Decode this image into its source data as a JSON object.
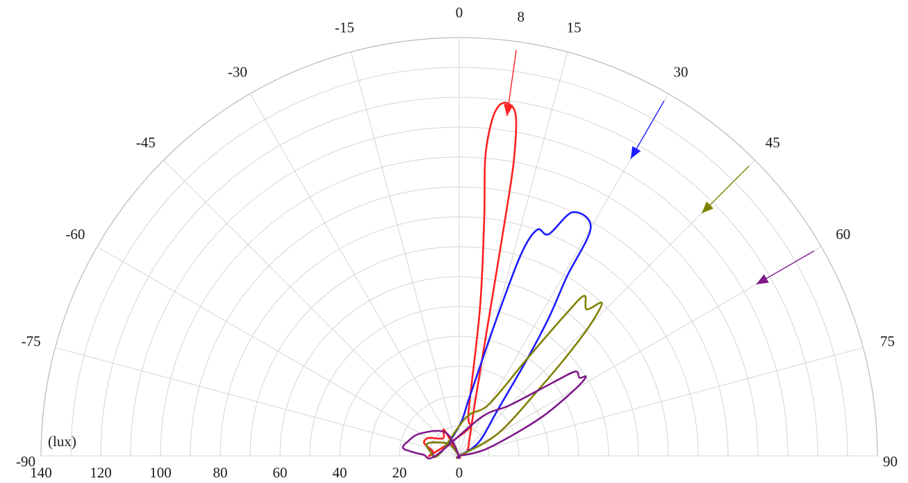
{
  "chart_data": {
    "type": "polar",
    "unit_label": "(lux)",
    "angle_ticks": [
      -90,
      -75,
      -60,
      -45,
      -30,
      -15,
      0,
      15,
      30,
      45,
      60,
      75,
      90
    ],
    "extra_angle_tick": 8,
    "radius_ticks": [
      140,
      120,
      100,
      80,
      60,
      40,
      20,
      0
    ],
    "rlim": [
      0,
      140
    ],
    "grid": true,
    "series": [
      {
        "color": "#ff2020",
        "incidence_angle": 8,
        "points": [
          [
            0,
            0
          ],
          [
            -30,
            10
          ],
          [
            -40,
            8
          ],
          [
            -50,
            9
          ],
          [
            -60,
            12
          ],
          [
            -70,
            12.5
          ],
          [
            -80,
            9
          ],
          [
            -88,
            9.5
          ],
          [
            20,
            10
          ],
          [
            12,
            15
          ],
          [
            8,
            50
          ],
          [
            6,
            80
          ],
          [
            5,
            100
          ],
          [
            5.5,
            112
          ],
          [
            6.5,
            118
          ],
          [
            8,
            119
          ],
          [
            9.5,
            115
          ],
          [
            10.5,
            100
          ],
          [
            11,
            80
          ],
          [
            12,
            50
          ],
          [
            16,
            20
          ],
          [
            30,
            7
          ],
          [
            60,
            3
          ],
          [
            90,
            0
          ]
        ]
      },
      {
        "color": "#1c1cff",
        "incidence_angle": 30,
        "points": [
          [
            0,
            0
          ],
          [
            -40,
            5
          ],
          [
            -60,
            9
          ],
          [
            -70,
            11.5
          ],
          [
            -80,
            10
          ],
          [
            -88,
            7
          ],
          [
            0,
            10
          ],
          [
            10,
            20
          ],
          [
            15,
            45
          ],
          [
            17,
            70
          ],
          [
            19,
            80
          ],
          [
            22,
            80
          ],
          [
            25,
            90
          ],
          [
            30,
            88
          ],
          [
            31,
            70
          ],
          [
            33,
            55
          ],
          [
            35,
            40
          ],
          [
            40,
            20
          ],
          [
            55,
            8
          ],
          [
            90,
            0
          ]
        ]
      },
      {
        "color": "#808000",
        "incidence_angle": 45,
        "points": [
          [
            0,
            0
          ],
          [
            -40,
            5
          ],
          [
            -60,
            9
          ],
          [
            -70,
            11.5
          ],
          [
            -80,
            10
          ],
          [
            -88,
            7
          ],
          [
            10,
            13
          ],
          [
            30,
            20
          ],
          [
            35,
            40
          ],
          [
            37,
            60
          ],
          [
            38,
            68
          ],
          [
            41,
            65
          ],
          [
            43,
            70
          ],
          [
            45,
            62
          ],
          [
            47,
            50
          ],
          [
            50,
            35
          ],
          [
            60,
            15
          ],
          [
            90,
            0
          ]
        ]
      },
      {
        "color": "#80198a",
        "incidence_angle": 60,
        "points": [
          [
            0,
            0
          ],
          [
            -30,
            9
          ],
          [
            -60,
            15
          ],
          [
            -75,
            18
          ],
          [
            -82,
            19
          ],
          [
            -85,
            16
          ],
          [
            -88,
            12
          ],
          [
            -90,
            8
          ],
          [
            30,
            15
          ],
          [
            45,
            24
          ],
          [
            52,
            40
          ],
          [
            54,
            48
          ],
          [
            57,
            48
          ],
          [
            58,
            50
          ],
          [
            60,
            45
          ],
          [
            65,
            30
          ],
          [
            75,
            10
          ],
          [
            90,
            0
          ]
        ]
      }
    ]
  }
}
